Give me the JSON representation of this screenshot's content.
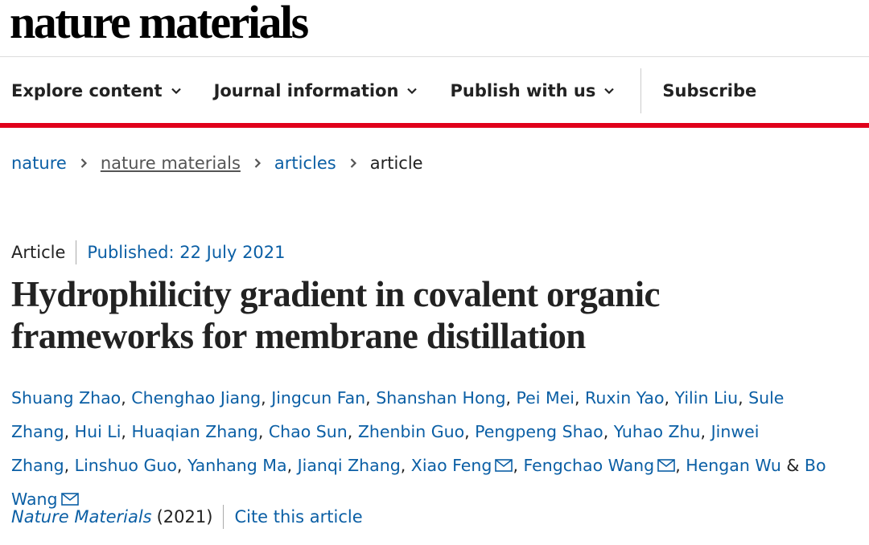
{
  "header": {
    "logo": "nature materials"
  },
  "nav": {
    "items": [
      "Explore content",
      "Journal information",
      "Publish with us"
    ],
    "subscribe": "Subscribe"
  },
  "breadcrumb": [
    "nature",
    "nature materials",
    "articles",
    "article"
  ],
  "article": {
    "type": "Article",
    "published": "Published: 22 July 2021",
    "title": "Hydrophilicity gradient in covalent organic frameworks for membrane distillation",
    "authors": [
      {
        "name": "Shuang Zhao",
        "after": ", "
      },
      {
        "name": "Chenghao Jiang",
        "after": ", "
      },
      {
        "name": "Jingcun Fan",
        "after": ", "
      },
      {
        "name": "Shanshan Hong",
        "after": ", "
      },
      {
        "name": "Pei Mei",
        "after": ", "
      },
      {
        "name": "Ruxin Yao",
        "after": ", "
      },
      {
        "name": "Yilin Liu",
        "after": ", "
      },
      {
        "name": "Sule Zhang",
        "after": ", "
      },
      {
        "name": "Hui Li",
        "after": ", "
      },
      {
        "name": "Huaqian Zhang",
        "after": ", "
      },
      {
        "name": "Chao Sun",
        "after": ", "
      },
      {
        "name": "Zhenbin Guo",
        "after": ", "
      },
      {
        "name": "Pengpeng Shao",
        "after": ", "
      },
      {
        "name": "Yuhao Zhu",
        "after": ", "
      },
      {
        "name": "Jinwei Zhang",
        "after": ", "
      },
      {
        "name": "Linshuo Guo",
        "after": ", "
      },
      {
        "name": "Yanhang Ma",
        "after": ", "
      },
      {
        "name": "Jianqi Zhang",
        "after": ", "
      },
      {
        "name": "Xiao Feng",
        "after": ", ",
        "corresponding": true
      },
      {
        "name": "Fengchao Wang",
        "after": ", ",
        "corresponding": true
      },
      {
        "name": "Hengan Wu",
        "after": " & "
      },
      {
        "name": "Bo Wang",
        "corresponding": true
      }
    ],
    "journal": "Nature Materials",
    "year": "(2021)",
    "cite": "Cite this article"
  }
}
